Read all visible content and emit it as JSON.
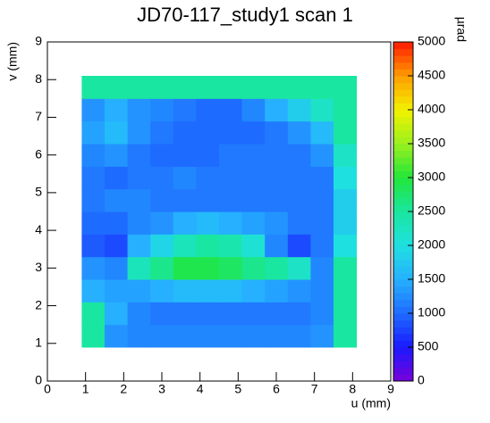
{
  "chart_data": {
    "type": "heatmap",
    "title": "JD70-117_study1 scan 1",
    "x_label": "u (mm)",
    "y_label": "v (mm)",
    "z_label": "µrad",
    "xlim": [
      0,
      9
    ],
    "ylim": [
      0,
      9
    ],
    "zlim": [
      0,
      5000
    ],
    "xticks": [
      0,
      1,
      2,
      3,
      4,
      5,
      6,
      7,
      8,
      9
    ],
    "yticks": [
      0,
      1,
      2,
      3,
      4,
      5,
      6,
      7,
      8,
      9
    ],
    "zticks": [
      0,
      500,
      1000,
      1500,
      2000,
      2500,
      3000,
      3500,
      4000,
      4500,
      5000
    ],
    "colormap": [
      "#7a00d9",
      "#1a1aff",
      "#1e6bff",
      "#26b0ff",
      "#1fe0e0",
      "#19e6a0",
      "#22e63a",
      "#9af01e",
      "#f2f200",
      "#ff9c00",
      "#ff1a00"
    ],
    "xbins": [
      0.9,
      1.5,
      2.1,
      2.7,
      3.3,
      3.9,
      4.5,
      5.1,
      5.7,
      6.3,
      6.9,
      7.5,
      8.1
    ],
    "ybins": [
      0.9,
      1.5,
      2.1,
      2.7,
      3.3,
      3.9,
      4.5,
      5.1,
      5.7,
      6.3,
      6.9,
      7.5,
      8.1
    ],
    "z": [
      [
        2500,
        1300,
        1200,
        1200,
        1200,
        1200,
        1200,
        1200,
        1200,
        1200,
        1300,
        2500
      ],
      [
        2500,
        1500,
        1200,
        1100,
        1100,
        1100,
        1100,
        1100,
        1100,
        1100,
        1200,
        2500
      ],
      [
        1500,
        1400,
        1400,
        1500,
        1600,
        1600,
        1600,
        1500,
        1400,
        1300,
        1200,
        2500
      ],
      [
        1300,
        1200,
        2300,
        2600,
        2900,
        2900,
        2800,
        2600,
        2500,
        2200,
        1200,
        2500
      ],
      [
        900,
        800,
        1500,
        1900,
        2300,
        2500,
        2400,
        2100,
        1200,
        800,
        1100,
        2000
      ],
      [
        1000,
        1000,
        1200,
        1300,
        1500,
        1600,
        1500,
        1400,
        1300,
        1100,
        1100,
        1800
      ],
      [
        1100,
        1200,
        1200,
        1100,
        1100,
        1100,
        1100,
        1100,
        1100,
        1100,
        1100,
        1800
      ],
      [
        1100,
        1000,
        1100,
        1100,
        1200,
        1100,
        1100,
        1100,
        1100,
        1100,
        1100,
        2000
      ],
      [
        1200,
        1300,
        1100,
        1000,
        1000,
        1000,
        1100,
        1100,
        1100,
        1100,
        1300,
        2200
      ],
      [
        1400,
        1600,
        1300,
        1100,
        1000,
        1000,
        1000,
        1000,
        1100,
        1300,
        1600,
        2500
      ],
      [
        1300,
        1500,
        1300,
        1200,
        1100,
        1000,
        1000,
        1200,
        1500,
        1800,
        2200,
        2500
      ],
      [
        2500,
        2500,
        2500,
        2500,
        2500,
        2500,
        2500,
        2500,
        2500,
        2500,
        2500,
        2500
      ]
    ]
  }
}
